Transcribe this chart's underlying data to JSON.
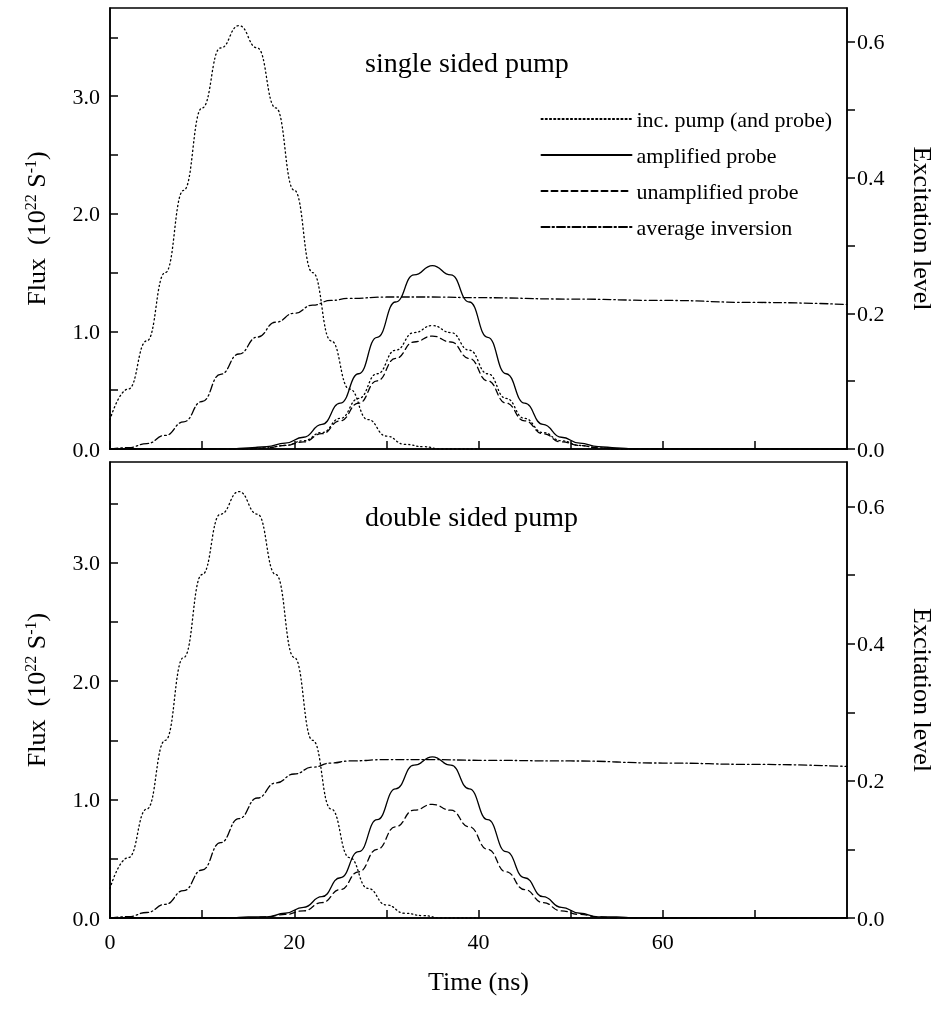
{
  "chart_data": [
    {
      "type": "line",
      "title": "single sided pump",
      "ylabel": "Flux  (10$^{22}$ S$^{-1}$)",
      "y2label": "Excitation level",
      "legend": "top right",
      "tick_labels": "y",
      "grid": false,
      "marker": "none",
      "xlim": [
        0,
        80
      ],
      "xticks": [
        {
          "value": 0,
          "label": null
        },
        {
          "value": 10,
          "label": null
        },
        {
          "value": 20,
          "label": null
        },
        {
          "value": 30,
          "label": null
        },
        {
          "value": 40,
          "label": null
        },
        {
          "value": 50,
          "label": null
        },
        {
          "value": 60,
          "label": null
        },
        {
          "value": 70,
          "label": null
        }
      ],
      "ylim": [
        0,
        3.75
      ],
      "yticks": [
        {
          "value": 0,
          "label": "0.0"
        },
        {
          "value": 0.5,
          "label": null
        },
        {
          "value": 1,
          "label": "1.0"
        },
        {
          "value": 1.5,
          "label": null
        },
        {
          "value": 2,
          "label": "2.0"
        },
        {
          "value": 2.5,
          "label": null
        },
        {
          "value": 3,
          "label": "3.0"
        },
        {
          "value": 3.5,
          "label": null
        }
      ],
      "y2lim": [
        0,
        0.65
      ],
      "y2ticks": [
        {
          "value": 0,
          "label": "0.0"
        },
        {
          "value": 0.1,
          "label": null
        },
        {
          "value": 0.2,
          "label": "0.2"
        },
        {
          "value": 0.3,
          "label": null
        },
        {
          "value": 0.4,
          "label": "0.4"
        },
        {
          "value": 0.5,
          "label": null
        },
        {
          "value": 0.6,
          "label": "0.6"
        }
      ],
      "series": [
        {
          "name": "inc. pump (and probe)",
          "color": "#000000",
          "line_style": "dotted",
          "x": [
            0,
            2,
            4,
            6,
            8,
            10,
            12,
            14,
            16,
            18,
            20,
            22,
            24,
            26,
            28,
            30,
            32,
            34,
            36,
            40
          ],
          "values": [
            0.25,
            0.51,
            0.92,
            1.5,
            2.2,
            2.9,
            3.41,
            3.6,
            3.41,
            2.9,
            2.2,
            1.5,
            0.92,
            0.51,
            0.25,
            0.11,
            0.04,
            0.02,
            0,
            0
          ]
        },
        {
          "name": "amplified probe",
          "color": "#000000",
          "line_style": "solid",
          "x": [
            0,
            13,
            15,
            17,
            19,
            21,
            23,
            25,
            27,
            29,
            31,
            33,
            35,
            37,
            39,
            41,
            43,
            45,
            47,
            49,
            51,
            53,
            55,
            57,
            80
          ],
          "values": [
            0,
            0,
            0.01,
            0.02,
            0.05,
            0.1,
            0.21,
            0.39,
            0.64,
            0.95,
            1.25,
            1.48,
            1.56,
            1.48,
            1.25,
            0.95,
            0.64,
            0.39,
            0.21,
            0.1,
            0.05,
            0.02,
            0.01,
            0,
            0
          ]
        },
        {
          "name": "unamplified probe",
          "color": "#000000",
          "line_style": "dashed",
          "x": [
            0,
            13,
            15,
            17,
            19,
            21,
            23,
            25,
            27,
            29,
            31,
            33,
            35,
            37,
            39,
            41,
            43,
            45,
            47,
            49,
            51,
            53,
            55,
            57,
            80
          ],
          "values": [
            0,
            0,
            0,
            0.01,
            0.03,
            0.06,
            0.13,
            0.24,
            0.39,
            0.58,
            0.77,
            0.91,
            0.96,
            0.91,
            0.77,
            0.58,
            0.39,
            0.24,
            0.13,
            0.06,
            0.03,
            0.01,
            0,
            0,
            0
          ]
        },
        {
          "name": "average inversion",
          "color": "#000000",
          "line_style": "dashdot",
          "axis": "y2",
          "x": [
            0,
            2,
            4,
            6,
            8,
            10,
            12,
            14,
            16,
            18,
            20,
            22,
            24,
            26,
            30,
            35,
            40,
            50,
            60,
            70,
            80
          ],
          "values": [
            0,
            0.002,
            0.008,
            0.02,
            0.04,
            0.07,
            0.11,
            0.14,
            0.165,
            0.187,
            0.2,
            0.212,
            0.219,
            0.222,
            0.224,
            0.224,
            0.223,
            0.221,
            0.219,
            0.216,
            0.213
          ]
        },
        {
          "color": "#000000",
          "line_style": "dotted",
          "x": [
            13,
            15,
            17,
            19,
            21,
            23,
            25,
            27,
            29,
            31,
            33,
            35,
            37,
            39,
            41,
            43,
            45,
            47,
            49,
            51,
            53,
            55,
            57
          ],
          "values": [
            0,
            0,
            0.01,
            0.03,
            0.07,
            0.14,
            0.26,
            0.43,
            0.64,
            0.84,
            0.99,
            1.05,
            0.99,
            0.84,
            0.64,
            0.43,
            0.26,
            0.14,
            0.07,
            0.03,
            0.01,
            0,
            0
          ]
        }
      ]
    },
    {
      "type": "line",
      "title": "double sided pump",
      "xlabel": "Time (ns)",
      "ylabel": "Flux  (10$^{22}$ S$^{-1}$)",
      "y2label": "Excitation level",
      "grid": false,
      "marker": "none",
      "xlim": [
        0,
        80
      ],
      "xticks": [
        {
          "value": 0,
          "label": "0"
        },
        {
          "value": 10,
          "label": null
        },
        {
          "value": 20,
          "label": "20"
        },
        {
          "value": 30,
          "label": null
        },
        {
          "value": 40,
          "label": "40"
        },
        {
          "value": 50,
          "label": null
        },
        {
          "value": 60,
          "label": "60"
        },
        {
          "value": 70,
          "label": null
        }
      ],
      "ylim": [
        0,
        3.85
      ],
      "yticks": [
        {
          "value": 0,
          "label": "0.0"
        },
        {
          "value": 0.5,
          "label": null
        },
        {
          "value": 1,
          "label": "1.0"
        },
        {
          "value": 1.5,
          "label": null
        },
        {
          "value": 2,
          "label": "2.0"
        },
        {
          "value": 2.5,
          "label": null
        },
        {
          "value": 3,
          "label": "3.0"
        },
        {
          "value": 3.5,
          "label": null
        }
      ],
      "y2lim": [
        0,
        0.665
      ],
      "y2ticks": [
        {
          "value": 0,
          "label": "0.0"
        },
        {
          "value": 0.1,
          "label": null
        },
        {
          "value": 0.2,
          "label": "0.2"
        },
        {
          "value": 0.3,
          "label": null
        },
        {
          "value": 0.4,
          "label": "0.4"
        },
        {
          "value": 0.5,
          "label": null
        },
        {
          "value": 0.6,
          "label": "0.6"
        }
      ],
      "series": [
        {
          "color": "#000000",
          "line_style": "dotted",
          "x": [
            0,
            2,
            4,
            6,
            8,
            10,
            12,
            14,
            16,
            18,
            20,
            22,
            24,
            26,
            28,
            30,
            32,
            34,
            36,
            40
          ],
          "values": [
            0.25,
            0.51,
            0.92,
            1.5,
            2.2,
            2.9,
            3.41,
            3.6,
            3.41,
            2.9,
            2.2,
            1.5,
            0.92,
            0.51,
            0.25,
            0.11,
            0.04,
            0.02,
            0,
            0
          ]
        },
        {
          "color": "#000000",
          "line_style": "solid",
          "x": [
            0,
            13,
            15,
            17,
            19,
            21,
            23,
            25,
            27,
            29,
            31,
            33,
            35,
            37,
            39,
            41,
            43,
            45,
            47,
            49,
            51,
            53,
            55,
            57,
            80
          ],
          "values": [
            0,
            0,
            0.01,
            0.01,
            0.04,
            0.09,
            0.18,
            0.34,
            0.56,
            0.83,
            1.09,
            1.29,
            1.36,
            1.29,
            1.09,
            0.83,
            0.56,
            0.34,
            0.18,
            0.09,
            0.04,
            0.01,
            0.01,
            0,
            0
          ]
        },
        {
          "color": "#000000",
          "line_style": "dashed",
          "x": [
            0,
            13,
            15,
            17,
            19,
            21,
            23,
            25,
            27,
            29,
            31,
            33,
            35,
            37,
            39,
            41,
            43,
            45,
            47,
            49,
            51,
            53,
            55,
            57,
            80
          ],
          "values": [
            0,
            0,
            0,
            0.01,
            0.03,
            0.06,
            0.13,
            0.24,
            0.39,
            0.58,
            0.77,
            0.91,
            0.96,
            0.91,
            0.77,
            0.58,
            0.39,
            0.24,
            0.13,
            0.06,
            0.03,
            0.01,
            0,
            0,
            0
          ]
        },
        {
          "color": "#000000",
          "line_style": "dashdot",
          "axis": "y2",
          "x": [
            0,
            2,
            4,
            6,
            8,
            10,
            12,
            14,
            16,
            18,
            20,
            22,
            24,
            26,
            30,
            35,
            40,
            50,
            60,
            70,
            80
          ],
          "values": [
            0,
            0.002,
            0.008,
            0.02,
            0.04,
            0.07,
            0.11,
            0.145,
            0.175,
            0.197,
            0.21,
            0.22,
            0.226,
            0.229,
            0.231,
            0.231,
            0.23,
            0.229,
            0.226,
            0.224,
            0.221
          ]
        }
      ]
    }
  ]
}
